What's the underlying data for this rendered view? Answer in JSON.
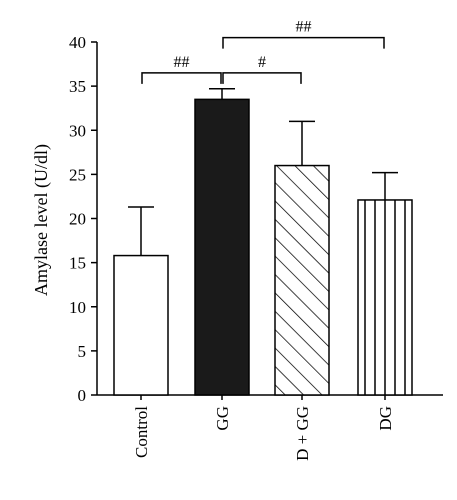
{
  "chart_data": {
    "type": "bar",
    "ylabel": "Amylase level (U/dl)",
    "ylim": [
      0,
      40
    ],
    "yticks": [
      0,
      5,
      10,
      15,
      20,
      25,
      30,
      35,
      40
    ],
    "categories": [
      "Control",
      "GG",
      "D + GG",
      "DG"
    ],
    "values": [
      15.8,
      33.5,
      26.0,
      22.1
    ],
    "errors": [
      5.5,
      1.2,
      5.0,
      3.1
    ],
    "fills": [
      "white",
      "black",
      "diagonal-hatch",
      "vertical-hatch"
    ],
    "significance": [
      {
        "from": 0,
        "to": 1,
        "label": "##",
        "level": 36.5
      },
      {
        "from": 1,
        "to": 2,
        "label": "#",
        "level": 36.5
      },
      {
        "from": 1,
        "to": 3,
        "label": "##",
        "level": 40.5
      }
    ]
  }
}
